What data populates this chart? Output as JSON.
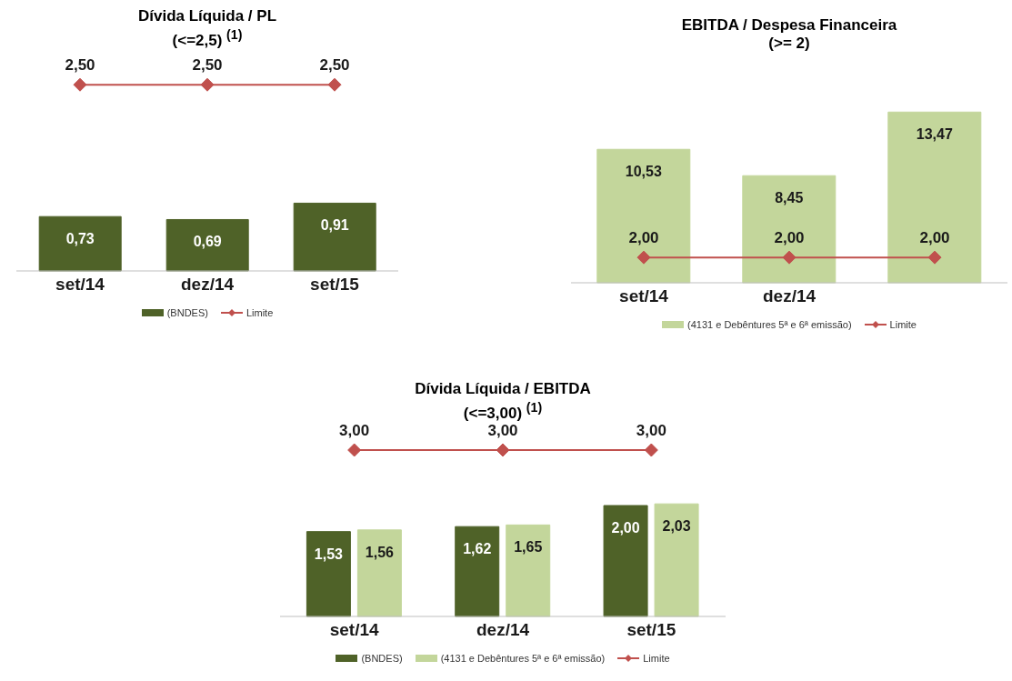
{
  "chart_data": [
    {
      "type": "bar",
      "title": "Dívida Líquida / PL",
      "subtitle": "(<=2,5) $^{(1)}$",
      "categories": [
        "set/14",
        "dez/14",
        "set/15"
      ],
      "marker": "diamond",
      "legend": "bottom",
      "series": [
        {
          "name": "(BNDES)",
          "color": "#4f6228",
          "values": [
            0.73,
            0.69,
            0.91
          ],
          "value_labels": [
            "0,73",
            "0,69",
            "0,91"
          ]
        },
        {
          "name": "Limite",
          "type": "line",
          "color": "#c0504d",
          "values": [
            2.5,
            2.5,
            2.5
          ],
          "value_labels": [
            "2,50",
            "2,50",
            "2,50"
          ]
        }
      ]
    },
    {
      "type": "bar",
      "title": "EBITDA / Despesa Financeira",
      "subtitle": "(>= 2)",
      "categories": [
        "set/14",
        "dez/14",
        null
      ],
      "marker": "diamond",
      "legend": "bottom",
      "series": [
        {
          "name": "(4131 e Debêntures 5ª e 6ª emissão)",
          "color": "#c3d69b",
          "values": [
            10.53,
            8.45,
            13.47
          ],
          "value_labels": [
            "10,53",
            "8,45",
            "13,47"
          ]
        },
        {
          "name": "Limite",
          "type": "line",
          "color": "#c0504d",
          "values": [
            2.0,
            2.0,
            2.0
          ],
          "value_labels": [
            "2,00",
            "2,00",
            "2,00"
          ]
        }
      ]
    },
    {
      "type": "bar",
      "title": "Dívida Líquida / EBITDA",
      "subtitle": "(<=3,00) $^{(1)}$",
      "categories": [
        "set/14",
        "dez/14",
        "set/15"
      ],
      "marker": "diamond",
      "legend": "bottom",
      "series": [
        {
          "name": "(BNDES)",
          "color": "#4f6228",
          "values": [
            1.53,
            1.62,
            2.0
          ],
          "value_labels": [
            "1,53",
            "1,62",
            "2,00"
          ]
        },
        {
          "name": "(4131 e Debêntures 5ª e 6ª emissão)",
          "color": "#c3d69b",
          "values": [
            1.56,
            1.65,
            2.03
          ],
          "value_labels": [
            "1,56",
            "1,65",
            "2,03"
          ]
        },
        {
          "name": "Limite",
          "type": "line",
          "color": "#c0504d",
          "values": [
            3.0,
            3.0,
            3.0
          ],
          "value_labels": [
            "3,00",
            "3,00",
            "3,00"
          ]
        }
      ]
    }
  ]
}
